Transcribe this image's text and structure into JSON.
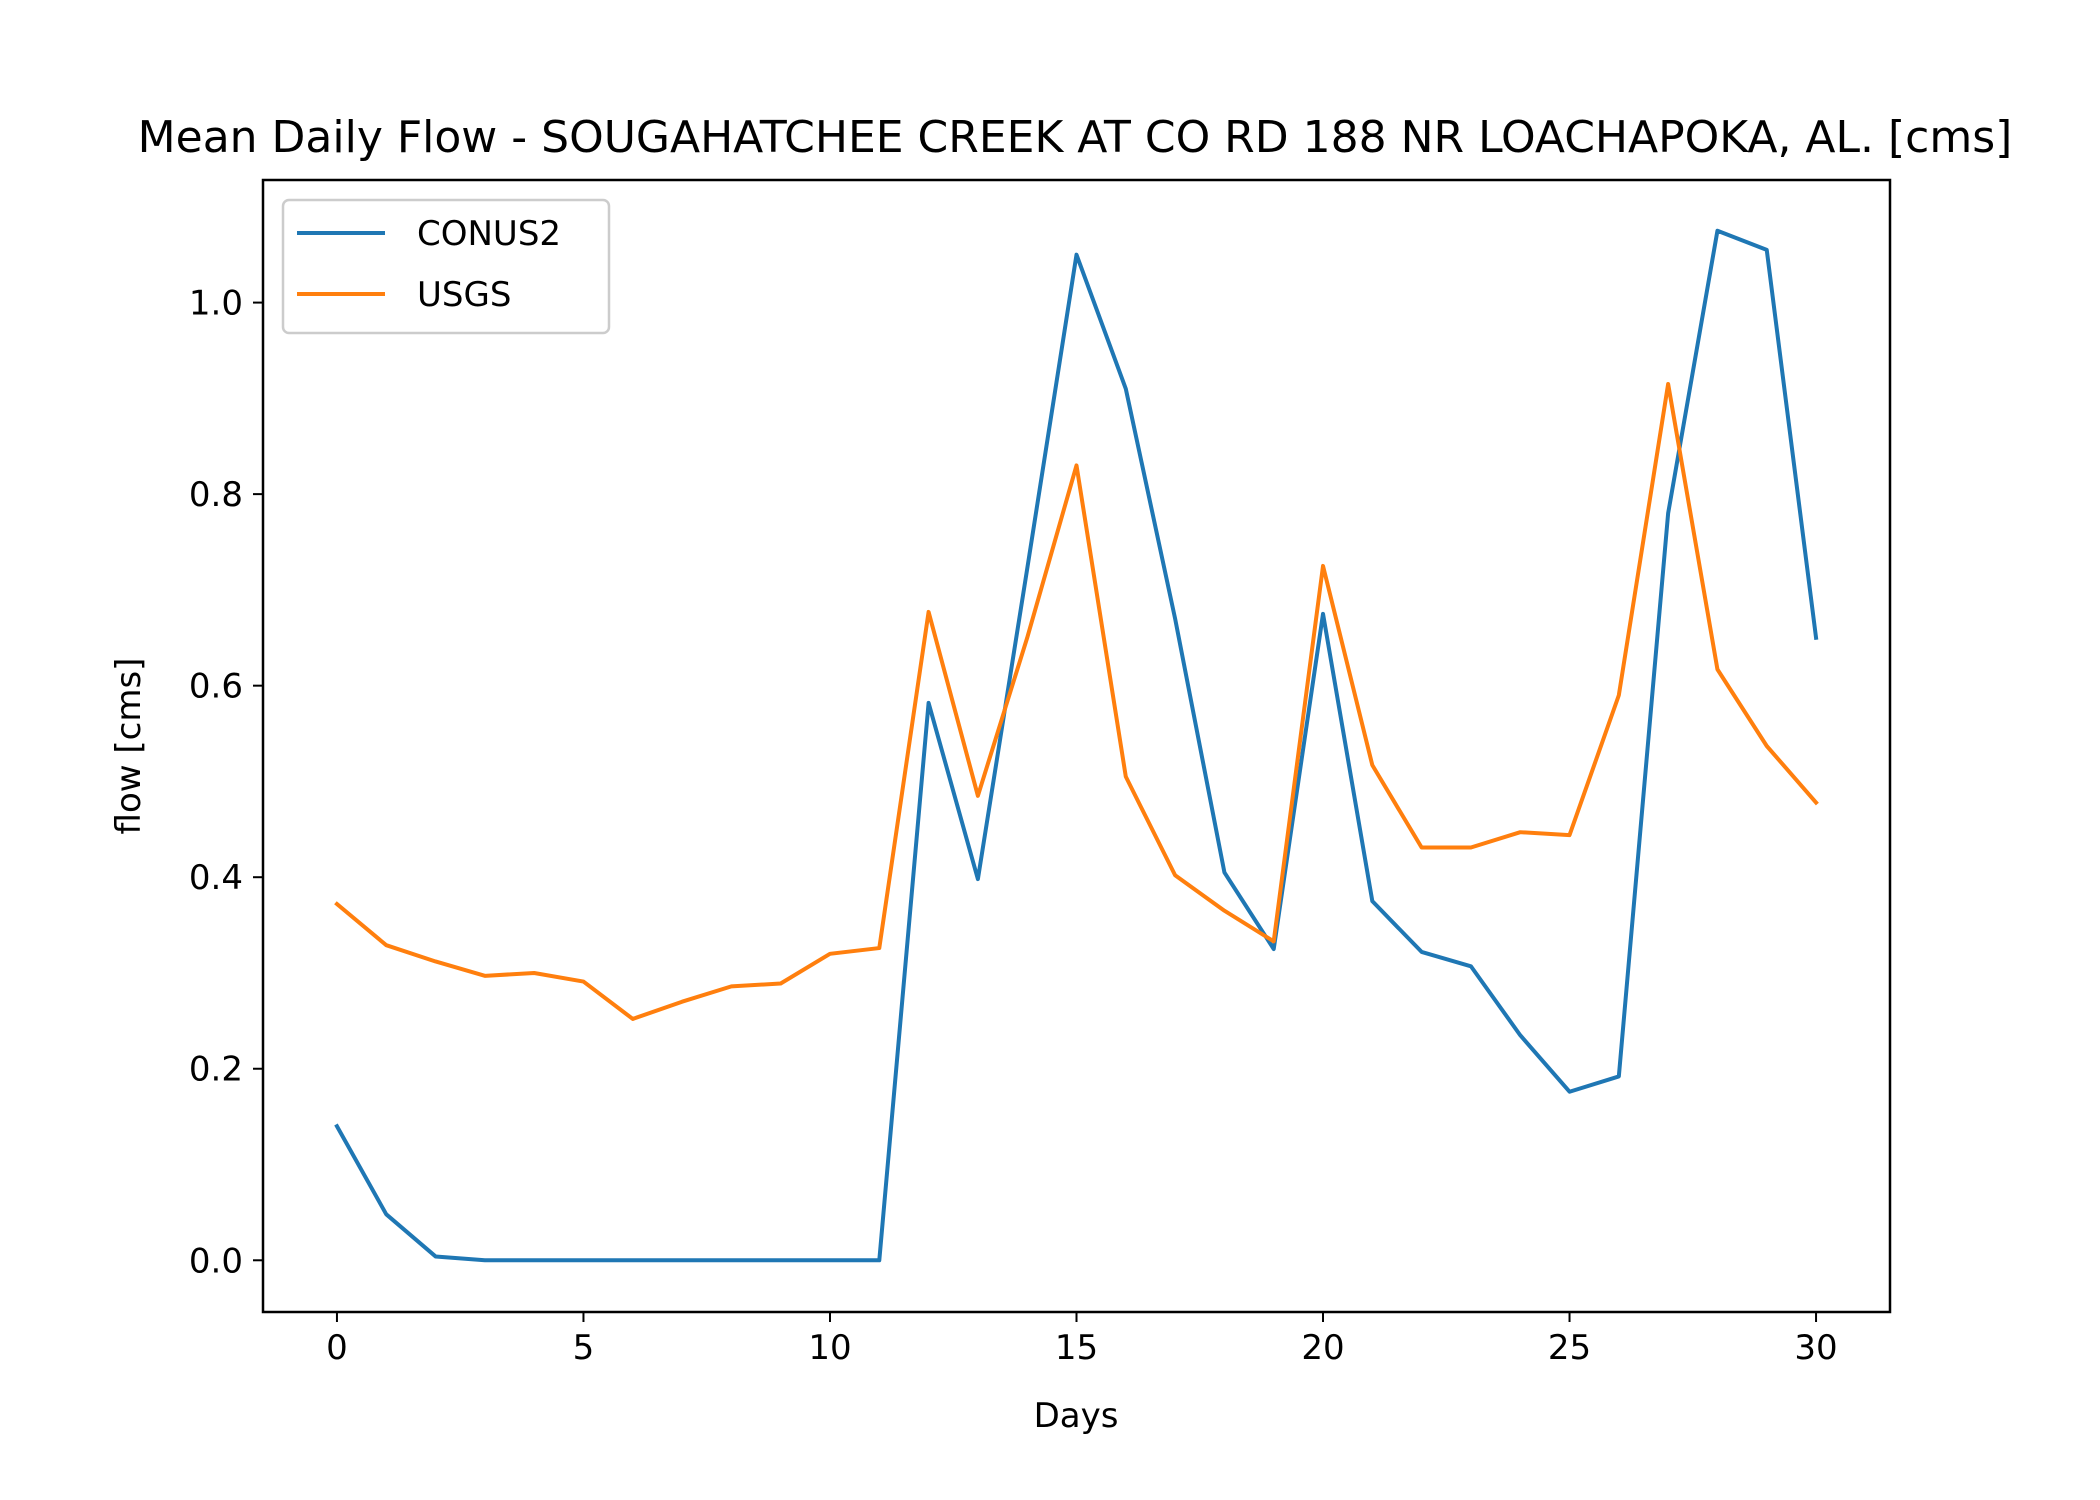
{
  "chart_data": {
    "type": "line",
    "title": "Mean Daily Flow - SOUGAHATCHEE CREEK AT CO RD 188 NR LOACHAPOKA, AL. [cms]",
    "xlabel": "Days",
    "ylabel": "flow [cms]",
    "xlim": [
      -1.5,
      31.5
    ],
    "ylim": [
      -0.054,
      1.128
    ],
    "xticks": [
      0,
      5,
      10,
      15,
      20,
      25,
      30
    ],
    "xtick_labels": [
      "0",
      "5",
      "10",
      "15",
      "20",
      "25",
      "30"
    ],
    "yticks": [
      0.0,
      0.2,
      0.4,
      0.6,
      0.8,
      1.0
    ],
    "ytick_labels": [
      "0.0",
      "0.2",
      "0.4",
      "0.6",
      "0.8",
      "1.0"
    ],
    "grid": false,
    "legend_position": "upper-left",
    "x": [
      0,
      1,
      2,
      3,
      4,
      5,
      6,
      7,
      8,
      9,
      10,
      11,
      12,
      13,
      14,
      15,
      16,
      17,
      18,
      19,
      20,
      21,
      22,
      23,
      24,
      25,
      26,
      27,
      28,
      29,
      30
    ],
    "series": [
      {
        "name": "CONUS2",
        "color": "#1f77b4",
        "values": [
          0.14,
          0.048,
          0.004,
          0.0,
          0.0,
          0.0,
          0.0,
          0.0,
          0.0,
          0.0,
          0.0,
          0.0,
          0.582,
          0.398,
          0.722,
          1.05,
          0.91,
          0.67,
          0.405,
          0.325,
          0.675,
          0.375,
          0.322,
          0.307,
          0.235,
          0.176,
          0.192,
          0.78,
          1.075,
          1.055,
          0.65
        ]
      },
      {
        "name": "USGS",
        "color": "#ff7f0e",
        "values": [
          0.372,
          0.329,
          0.312,
          0.297,
          0.3,
          0.291,
          0.252,
          0.27,
          0.286,
          0.289,
          0.32,
          0.326,
          0.677,
          0.485,
          0.65,
          0.83,
          0.505,
          0.402,
          0.365,
          0.333,
          0.725,
          0.517,
          0.431,
          0.431,
          0.447,
          0.444,
          0.59,
          0.915,
          0.617,
          0.537,
          0.478
        ]
      }
    ]
  }
}
